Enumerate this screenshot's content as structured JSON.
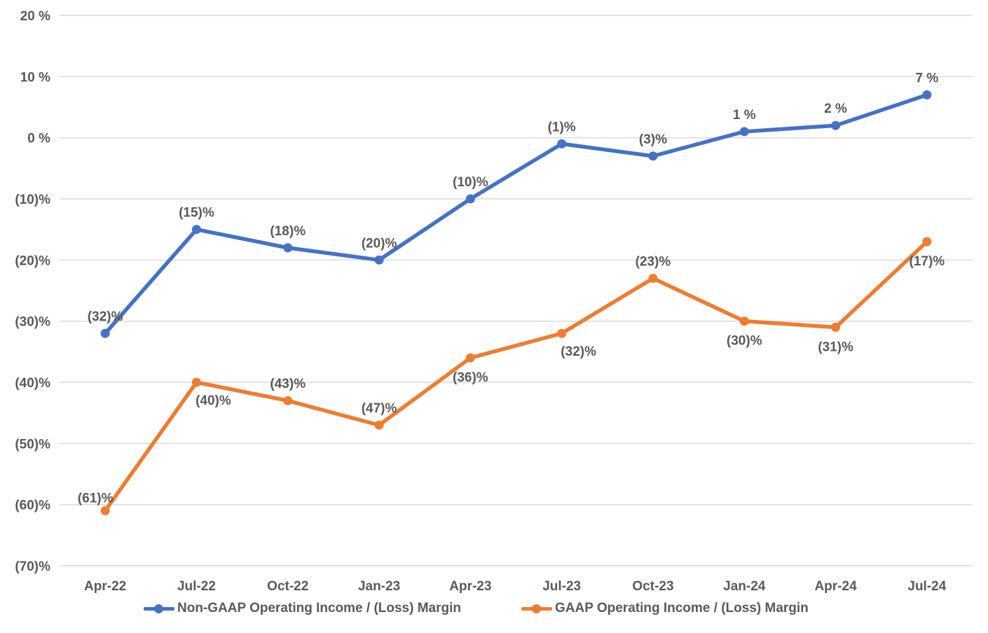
{
  "chart_data": {
    "type": "line",
    "title": "",
    "xlabel": "",
    "ylabel": "",
    "x": [
      "Apr-22",
      "Jul-22",
      "Oct-22",
      "Jan-23",
      "Apr-23",
      "Jul-23",
      "Oct-23",
      "Jan-24",
      "Apr-24",
      "Jul-24"
    ],
    "series": [
      {
        "name": "Non-GAAP Operating Income / (Loss) Margin",
        "color": "#4472C4",
        "values": [
          -32,
          -15,
          -18,
          -20,
          -10,
          -1,
          -3,
          1,
          2,
          7
        ],
        "labels": [
          "(32)%",
          "(15)%",
          "(18)%",
          "(20)%",
          "(10)%",
          "(1)%",
          "(3)%",
          "1 %",
          "2 %",
          "7 %"
        ],
        "label_positions": [
          "above",
          "above",
          "above",
          "above",
          "above",
          "above",
          "above",
          "above",
          "above",
          "above"
        ]
      },
      {
        "name": "GAAP Operating Income / (Loss) Margin",
        "color": "#ED7D31",
        "values": [
          -61,
          -40,
          -43,
          -47,
          -36,
          -32,
          -23,
          -30,
          -31,
          -17
        ],
        "labels": [
          "(61)%",
          "(40)%",
          "(43)%",
          "(47)%",
          "(36)%",
          "(32)%",
          "(23)%",
          "(30)%",
          "(31)%",
          "(17)%"
        ],
        "label_positions": [
          "above-left",
          "below-right",
          "above",
          "above",
          "below",
          "below-right",
          "above",
          "below",
          "below",
          "below"
        ]
      }
    ],
    "y_axis": {
      "min": -70,
      "max": 20,
      "step": 10,
      "tick_labels": [
        "20 %",
        "10 %",
        "0 %",
        "(10)%",
        "(20)%",
        "(30)%",
        "(40)%",
        "(50)%",
        "(60)%",
        "(70)%"
      ]
    },
    "grid": true,
    "legend_position": "bottom",
    "colors": {
      "gridline": "#D9D9D9",
      "axis_text": "#595959",
      "data_label_text": "#595959"
    }
  }
}
